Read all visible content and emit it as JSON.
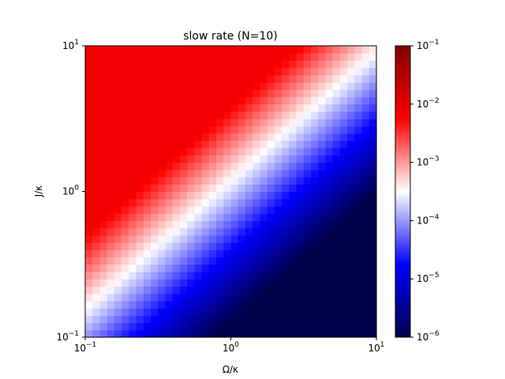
{
  "chart_data": {
    "type": "heatmap",
    "title": "slow rate (N=10)",
    "xlabel": "Ω/κ",
    "ylabel": "J/κ",
    "x_scale": "log",
    "y_scale": "log",
    "xlim": [
      0.1,
      10
    ],
    "ylim": [
      0.1,
      10
    ],
    "x_ticks": [
      {
        "base": "10",
        "exp": "−1"
      },
      {
        "base": "10",
        "exp": "0"
      },
      {
        "base": "10",
        "exp": "1"
      }
    ],
    "y_ticks": [
      {
        "base": "10",
        "exp": "−1"
      },
      {
        "base": "10",
        "exp": "0"
      },
      {
        "base": "10",
        "exp": "1"
      }
    ],
    "grid": false,
    "colormap": "seismic",
    "color_scale": "log",
    "colorbar": {
      "range": [
        1e-06,
        0.1
      ],
      "ticks": [
        {
          "base": "10",
          "exp": "−6"
        },
        {
          "base": "10",
          "exp": "−5"
        },
        {
          "base": "10",
          "exp": "−4"
        },
        {
          "base": "10",
          "exp": "−3"
        },
        {
          "base": "10",
          "exp": "−2"
        },
        {
          "base": "10",
          "exp": "−1"
        }
      ],
      "placement": "right"
    },
    "grid_size": [
      40,
      40
    ],
    "approx_field": {
      "rule": "log10(rate) ≈ clamp(-4 + 2.6*log10((J/κ)/(Ω/κ)) + 0.3*(log10(Ω/κ)+1), -6, -2.1)",
      "saturated_high_rate": 0.0079,
      "saturated_low_rate": 1e-06,
      "neutral_rate": 0.0001
    }
  }
}
